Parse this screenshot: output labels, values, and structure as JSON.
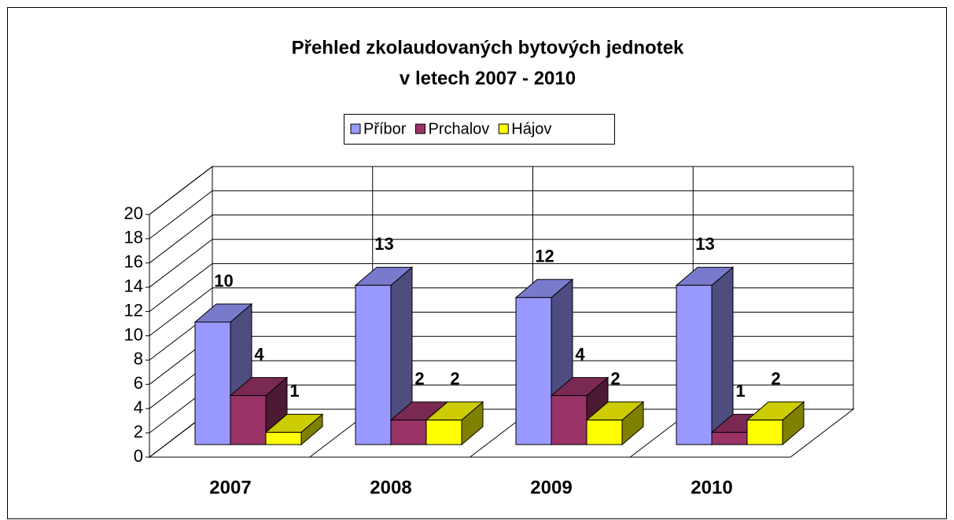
{
  "chart_data": {
    "type": "bar3d",
    "title": [
      "Přehled zkolaudovaných bytových jednotek",
      "v letech 2007 - 2010"
    ],
    "categories": [
      "2007",
      "2008",
      "2009",
      "2010"
    ],
    "series": [
      {
        "name": "Příbor",
        "color": "#9999ff",
        "values": [
          10,
          13,
          12,
          13
        ]
      },
      {
        "name": "Prchalov",
        "color": "#993366",
        "values": [
          4,
          2,
          4,
          1
        ]
      },
      {
        "name": "Hájov",
        "color": "#ffff00",
        "values": [
          1,
          2,
          2,
          2
        ]
      }
    ],
    "ylim": [
      0,
      20
    ],
    "yticks": [
      0,
      2,
      4,
      6,
      8,
      10,
      12,
      14,
      16,
      18,
      20
    ],
    "grid": true,
    "legend": "top",
    "data_labels": true
  }
}
